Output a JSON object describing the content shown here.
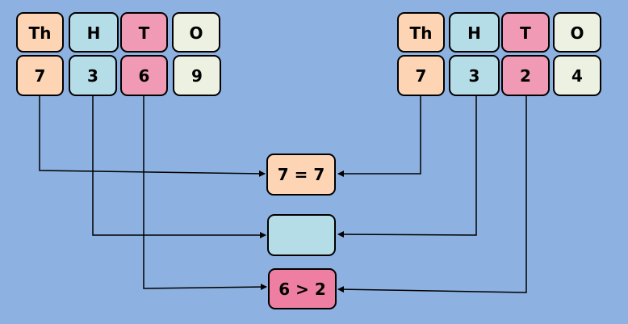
{
  "colors": {
    "background": "#8DB1E1",
    "thousands": "#FDD5B5",
    "hundreds": "#B5DDE8",
    "tens": "#F19AB6",
    "ones": "#EDF1E2",
    "tens_result": "#EE7FA2"
  },
  "left_number": {
    "headers": [
      "Th",
      "H",
      "T",
      "O"
    ],
    "digits": [
      "7",
      "3",
      "6",
      "9"
    ]
  },
  "right_number": {
    "headers": [
      "Th",
      "H",
      "T",
      "O"
    ],
    "digits": [
      "7",
      "3",
      "2",
      "4"
    ]
  },
  "comparisons": [
    "7 = 7",
    "",
    "6 > 2"
  ]
}
